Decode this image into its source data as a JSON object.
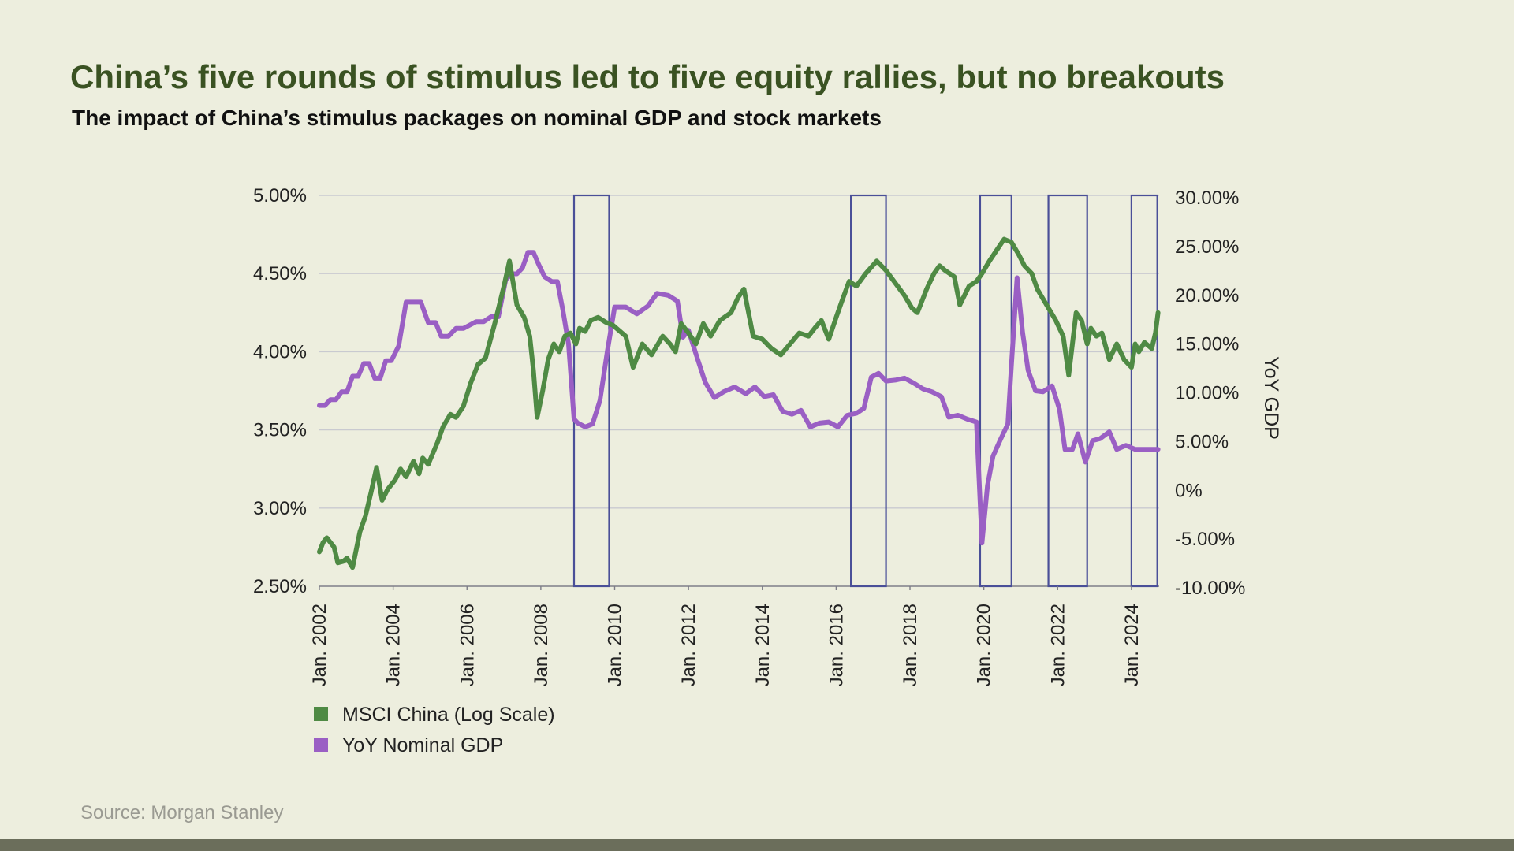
{
  "header": {
    "title": "China’s five rounds of stimulus led to five equity rallies, but no breakouts",
    "subtitle": "The impact of China’s stimulus packages on nominal GDP and stock markets"
  },
  "footer": {
    "source": "Source:  Morgan Stanley"
  },
  "colors": {
    "background": "#edeede",
    "msci": "#4f8a44",
    "gdp": "#9a5fc4",
    "box": "#4a4f98",
    "title": "#3a5222"
  },
  "chart_data": {
    "type": "line",
    "title": "China’s five rounds of stimulus led to five equity rallies, but no breakouts",
    "subtitle": "The impact of China’s stimulus packages on nominal GDP and stock markets",
    "legend_position": "bottom-left",
    "grid": true,
    "x_axis": {
      "ticks": [
        "Jan. 2002",
        "Jan. 2004",
        "Jan. 2006",
        "Jan. 2008",
        "Jan. 2010",
        "Jan. 2012",
        "Jan. 2014",
        "Jan. 2016",
        "Jan. 2018",
        "Jan. 2020",
        "Jan. 2022",
        "Jan. 2024"
      ],
      "tick_years": [
        2002,
        2004,
        2006,
        2008,
        2010,
        2012,
        2014,
        2016,
        2018,
        2020,
        2022,
        2024
      ],
      "range": [
        2002.0,
        2024.75
      ]
    },
    "y_left": {
      "ticks": [
        "2.50%",
        "3.00%",
        "3.50%",
        "4.00%",
        "4.50%",
        "5.00%"
      ],
      "tick_values": [
        2.5,
        3.0,
        3.5,
        4.0,
        4.5,
        5.0
      ],
      "range": [
        2.5,
        5.0
      ]
    },
    "y_right": {
      "label": "YoY GDP",
      "ticks": [
        "-10.00%",
        "-5.00%",
        "0%",
        "5.00%",
        "10.00%",
        "15.00%",
        "20.00%",
        "25.00%",
        "30.00%"
      ],
      "tick_values": [
        -10,
        -5,
        0,
        5,
        10,
        15,
        20,
        25,
        30
      ],
      "range": [
        -10,
        30
      ]
    },
    "stimulus_periods": [
      [
        2008.9,
        2009.85
      ],
      [
        2016.4,
        2017.35
      ],
      [
        2019.9,
        2020.75
      ],
      [
        2021.75,
        2022.8
      ],
      [
        2024.0,
        2024.7
      ]
    ],
    "series": [
      {
        "name": "MSCI China (Log Scale)",
        "axis": "left",
        "x": [
          2002.0,
          2002.1,
          2002.2,
          2002.4,
          2002.5,
          2002.65,
          2002.75,
          2002.9,
          2003.1,
          2003.25,
          2003.4,
          2003.55,
          2003.7,
          2003.85,
          2004.05,
          2004.2,
          2004.35,
          2004.55,
          2004.7,
          2004.8,
          2004.95,
          2005.2,
          2005.35,
          2005.55,
          2005.7,
          2005.9,
          2006.1,
          2006.3,
          2006.5,
          2006.75,
          2007.0,
          2007.15,
          2007.35,
          2007.55,
          2007.7,
          2007.8,
          2007.9,
          2008.05,
          2008.2,
          2008.35,
          2008.5,
          2008.65,
          2008.8,
          2008.95,
          2009.05,
          2009.2,
          2009.35,
          2009.55,
          2009.75,
          2009.95,
          2010.3,
          2010.5,
          2010.75,
          2011.0,
          2011.3,
          2011.5,
          2011.65,
          2011.8,
          2012.0,
          2012.2,
          2012.4,
          2012.6,
          2012.85,
          2013.15,
          2013.35,
          2013.5,
          2013.75,
          2014.0,
          2014.25,
          2014.5,
          2014.75,
          2015.0,
          2015.25,
          2015.45,
          2015.6,
          2015.8,
          2016.0,
          2016.15,
          2016.35,
          2016.55,
          2016.8,
          2017.1,
          2017.35,
          2017.6,
          2017.85,
          2018.05,
          2018.2,
          2018.45,
          2018.65,
          2018.8,
          2018.95,
          2019.2,
          2019.35,
          2019.6,
          2019.8,
          2019.95,
          2020.15,
          2020.35,
          2020.55,
          2020.75,
          2020.95,
          2021.1,
          2021.3,
          2021.45,
          2021.7,
          2021.95,
          2022.15,
          2022.3,
          2022.5,
          2022.65,
          2022.8,
          2022.9,
          2023.05,
          2023.2,
          2023.4,
          2023.6,
          2023.8,
          2024.0,
          2024.1,
          2024.2,
          2024.35,
          2024.55,
          2024.65,
          2024.72
        ],
        "values": [
          2.72,
          2.78,
          2.81,
          2.75,
          2.65,
          2.66,
          2.68,
          2.62,
          2.85,
          2.95,
          3.1,
          3.26,
          3.05,
          3.12,
          3.18,
          3.25,
          3.2,
          3.3,
          3.22,
          3.32,
          3.28,
          3.42,
          3.52,
          3.6,
          3.58,
          3.65,
          3.8,
          3.92,
          3.96,
          4.18,
          4.42,
          4.58,
          4.3,
          4.22,
          4.1,
          3.88,
          3.58,
          3.75,
          3.95,
          4.05,
          4.0,
          4.1,
          4.12,
          4.05,
          4.15,
          4.13,
          4.2,
          4.22,
          4.19,
          4.17,
          4.1,
          3.9,
          4.05,
          3.98,
          4.1,
          4.05,
          4.0,
          4.18,
          4.12,
          4.05,
          4.18,
          4.1,
          4.2,
          4.25,
          4.35,
          4.4,
          4.1,
          4.08,
          4.02,
          3.98,
          4.05,
          4.12,
          4.1,
          4.16,
          4.2,
          4.08,
          4.22,
          4.32,
          4.45,
          4.42,
          4.5,
          4.58,
          4.52,
          4.44,
          4.36,
          4.28,
          4.25,
          4.4,
          4.5,
          4.55,
          4.52,
          4.48,
          4.3,
          4.42,
          4.45,
          4.5,
          4.58,
          4.65,
          4.72,
          4.7,
          4.62,
          4.55,
          4.5,
          4.4,
          4.3,
          4.2,
          4.1,
          3.85,
          4.25,
          4.2,
          4.05,
          4.15,
          4.1,
          4.12,
          3.95,
          4.05,
          3.95,
          3.9,
          4.05,
          4.0,
          4.06,
          4.02,
          4.12,
          4.25
        ],
        "color": "#4f8a44"
      },
      {
        "name": "YoY Nominal GDP",
        "axis": "right",
        "x": [
          2002.0,
          2002.15,
          2002.3,
          2002.45,
          2002.6,
          2002.75,
          2002.9,
          2003.05,
          2003.2,
          2003.35,
          2003.5,
          2003.65,
          2003.8,
          2003.95,
          2004.15,
          2004.35,
          2004.55,
          2004.75,
          2004.95,
          2005.15,
          2005.3,
          2005.5,
          2005.7,
          2005.9,
          2006.05,
          2006.25,
          2006.45,
          2006.65,
          2006.85,
          2007.05,
          2007.2,
          2007.35,
          2007.5,
          2007.65,
          2007.8,
          2007.95,
          2008.1,
          2008.3,
          2008.45,
          2008.6,
          2008.75,
          2008.9,
          2009.0,
          2009.2,
          2009.4,
          2009.6,
          2009.8,
          2010.0,
          2010.3,
          2010.6,
          2010.9,
          2011.15,
          2011.45,
          2011.7,
          2011.85,
          2012.0,
          2012.2,
          2012.45,
          2012.7,
          2012.95,
          2013.25,
          2013.55,
          2013.8,
          2014.05,
          2014.3,
          2014.55,
          2014.8,
          2015.05,
          2015.3,
          2015.55,
          2015.8,
          2016.05,
          2016.3,
          2016.55,
          2016.75,
          2016.95,
          2017.15,
          2017.35,
          2017.6,
          2017.85,
          2018.1,
          2018.35,
          2018.6,
          2018.85,
          2019.05,
          2019.3,
          2019.55,
          2019.8,
          2019.95,
          2020.1,
          2020.25,
          2020.45,
          2020.65,
          2020.75,
          2020.9,
          2021.05,
          2021.2,
          2021.4,
          2021.6,
          2021.85,
          2022.05,
          2022.2,
          2022.4,
          2022.55,
          2022.75,
          2022.95,
          2023.15,
          2023.4,
          2023.6,
          2023.85,
          2024.1,
          2024.4,
          2024.72
        ],
        "values": [
          8.7,
          8.7,
          9.3,
          9.3,
          10.1,
          10.1,
          11.7,
          11.7,
          13.0,
          13.0,
          11.5,
          11.5,
          13.3,
          13.3,
          14.8,
          19.3,
          19.3,
          19.3,
          17.2,
          17.2,
          15.8,
          15.8,
          16.6,
          16.6,
          16.9,
          17.3,
          17.3,
          17.8,
          17.8,
          21.6,
          22.2,
          22.2,
          22.8,
          24.4,
          24.4,
          23.1,
          21.9,
          21.4,
          21.4,
          18.4,
          15.0,
          7.3,
          6.9,
          6.5,
          6.8,
          9.2,
          14.2,
          18.8,
          18.8,
          18.1,
          18.9,
          20.2,
          20.0,
          19.4,
          15.7,
          16.4,
          14.0,
          11.1,
          9.5,
          10.1,
          10.6,
          9.9,
          10.6,
          9.6,
          9.8,
          8.1,
          7.8,
          8.2,
          6.5,
          6.9,
          7.0,
          6.5,
          7.7,
          7.9,
          8.4,
          11.6,
          12.0,
          11.2,
          11.3,
          11.5,
          11.0,
          10.4,
          10.1,
          9.6,
          7.5,
          7.7,
          7.3,
          7.0,
          -5.4,
          0.5,
          3.5,
          5.2,
          6.8,
          12.9,
          21.8,
          16.2,
          12.3,
          10.2,
          10.1,
          10.7,
          8.3,
          4.2,
          4.2,
          5.8,
          2.9,
          5.1,
          5.3,
          6.0,
          4.2,
          4.6,
          4.2,
          4.2,
          4.2
        ],
        "color": "#9a5fc4"
      }
    ]
  }
}
